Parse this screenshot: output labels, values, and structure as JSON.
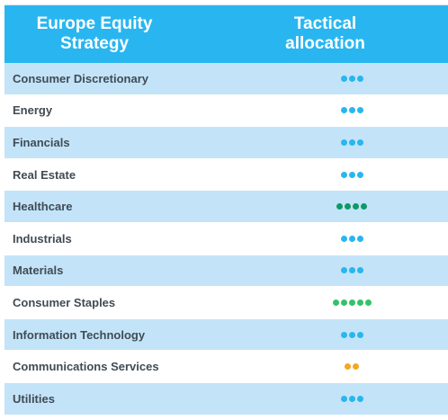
{
  "header": {
    "left_line1": "Europe Equity",
    "left_line2": "Strategy",
    "right_line1": "Tactical",
    "right_line2": "allocation"
  },
  "colors": {
    "header_bg": "#29b6f0",
    "row_shaded": "#c3e4f8",
    "dot_blue": "#29b6f0",
    "dot_teal": "#0d9968",
    "dot_green": "#34c26a",
    "dot_orange": "#f5a623"
  },
  "rows": [
    {
      "label": "Consumer Discretionary",
      "dots": 3,
      "dot_color": "#29b6f0"
    },
    {
      "label": "Energy",
      "dots": 3,
      "dot_color": "#29b6f0"
    },
    {
      "label": "Financials",
      "dots": 3,
      "dot_color": "#29b6f0"
    },
    {
      "label": "Real Estate",
      "dots": 3,
      "dot_color": "#29b6f0"
    },
    {
      "label": "Healthcare",
      "dots": 4,
      "dot_color": "#0d9968"
    },
    {
      "label": "Industrials",
      "dots": 3,
      "dot_color": "#29b6f0"
    },
    {
      "label": "Materials",
      "dots": 3,
      "dot_color": "#29b6f0"
    },
    {
      "label": "Consumer Staples",
      "dots": 5,
      "dot_color": "#34c26a"
    },
    {
      "label": "Information Technology",
      "dots": 3,
      "dot_color": "#29b6f0"
    },
    {
      "label": "Communications Services",
      "dots": 2,
      "dot_color": "#f5a623"
    },
    {
      "label": "Utilities",
      "dots": 3,
      "dot_color": "#29b6f0"
    }
  ]
}
